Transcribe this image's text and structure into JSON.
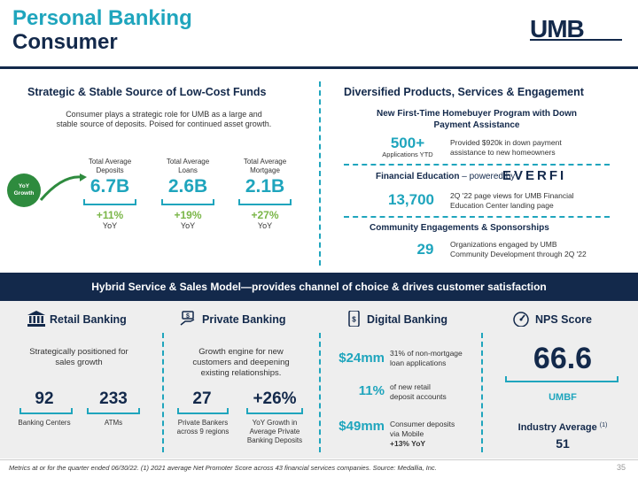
{
  "header": {
    "title_line1": "Personal Banking",
    "title_line2": "Consumer",
    "logo": "UMB"
  },
  "funds": {
    "title": "Strategic & Stable Source of Low-Cost Funds",
    "description_line1": "Consumer plays a strategic role for UMB as a large and",
    "description_line2": "stable source of deposits. Poised for continued asset growth.",
    "yoy_badge_line1": "YoY",
    "yoy_badge_line2": "Growth",
    "metrics": [
      {
        "label_line1": "Total Average",
        "label_line2": "Deposits",
        "value": "6.7B",
        "growth": "+11%",
        "yoy": "YoY"
      },
      {
        "label_line1": "Total Average",
        "label_line2": "Loans",
        "value": "2.6B",
        "growth": "+19%",
        "yoy": "YoY"
      },
      {
        "label_line1": "Total Average",
        "label_line2": "Mortgage",
        "value": "2.1B",
        "growth": "+27%",
        "yoy": "YoY"
      }
    ]
  },
  "diversified": {
    "title": "Diversified Products, Services & Engagement",
    "homebuyer_title_line1": "New First-Time Homebuyer Program with Down",
    "homebuyer_title_line2": "Payment Assistance",
    "homebuyer_value": "500+",
    "homebuyer_value_sub": "Applications YTD",
    "homebuyer_desc_line1": "Provided $920k in down payment",
    "homebuyer_desc_line2": "assistance to new homeowners",
    "fin_ed_title": "Financial Education",
    "fin_ed_powered": "– powered by",
    "fin_ed_logo": "EVERFI",
    "fin_ed_value": "13,700",
    "fin_ed_desc_line1": "2Q '22 page views for UMB Financial",
    "fin_ed_desc_line2": "Education Center landing page",
    "community_title": "Community Engagements & Sponsorships",
    "community_value": "29",
    "community_desc_line1": "Organizations engaged by UMB",
    "community_desc_line2": "Community Development through 2Q '22"
  },
  "band": {
    "text": "Hybrid Service & Sales Model—provides channel of choice & drives customer satisfaction"
  },
  "retail": {
    "title": "Retail Banking",
    "desc_line1": "Strategically positioned for",
    "desc_line2": "sales growth",
    "stat1_value": "92",
    "stat1_label": "Banking Centers",
    "stat2_value": "233",
    "stat2_label": "ATMs"
  },
  "private": {
    "title": "Private Banking",
    "desc_line1": "Growth engine for new",
    "desc_line2": "customers and deepening",
    "desc_line3": "existing relationships.",
    "stat1_value": "27",
    "stat1_label_line1": "Private Bankers",
    "stat1_label_line2": "across 9 regions",
    "stat2_value": "+26%",
    "stat2_label_line1": "YoY Growth in",
    "stat2_label_line2": "Average Private",
    "stat2_label_line3": "Banking Deposits"
  },
  "digital": {
    "title": "Digital Banking",
    "stat1_value": "$24mm",
    "stat1_desc_line1": "31% of non-mortgage",
    "stat1_desc_line2": "loan applications",
    "stat2_value": "11%",
    "stat2_desc_line1": "of new retail",
    "stat2_desc_line2": "deposit accounts",
    "stat3_value": "$49mm",
    "stat3_desc_line1": "Consumer deposits",
    "stat3_desc_line2": "via Mobile",
    "stat3_desc_line3": "+13% YoY"
  },
  "nps": {
    "title": "NPS Score",
    "value": "66.6",
    "label": "UMBF",
    "industry_label": "Industry Average",
    "industry_note": "(1)",
    "industry_value": "51"
  },
  "footer": {
    "text": "Metrics at or for the quarter ended 06/30/22. (1) 2021 average Net Promoter Score across 43 financial services companies. Source: Medallia, Inc.",
    "page": "35"
  },
  "colors": {
    "teal": "#1fa5bd",
    "navy": "#13294b",
    "green": "#7ab648",
    "badge_green": "#2e8b3e"
  }
}
